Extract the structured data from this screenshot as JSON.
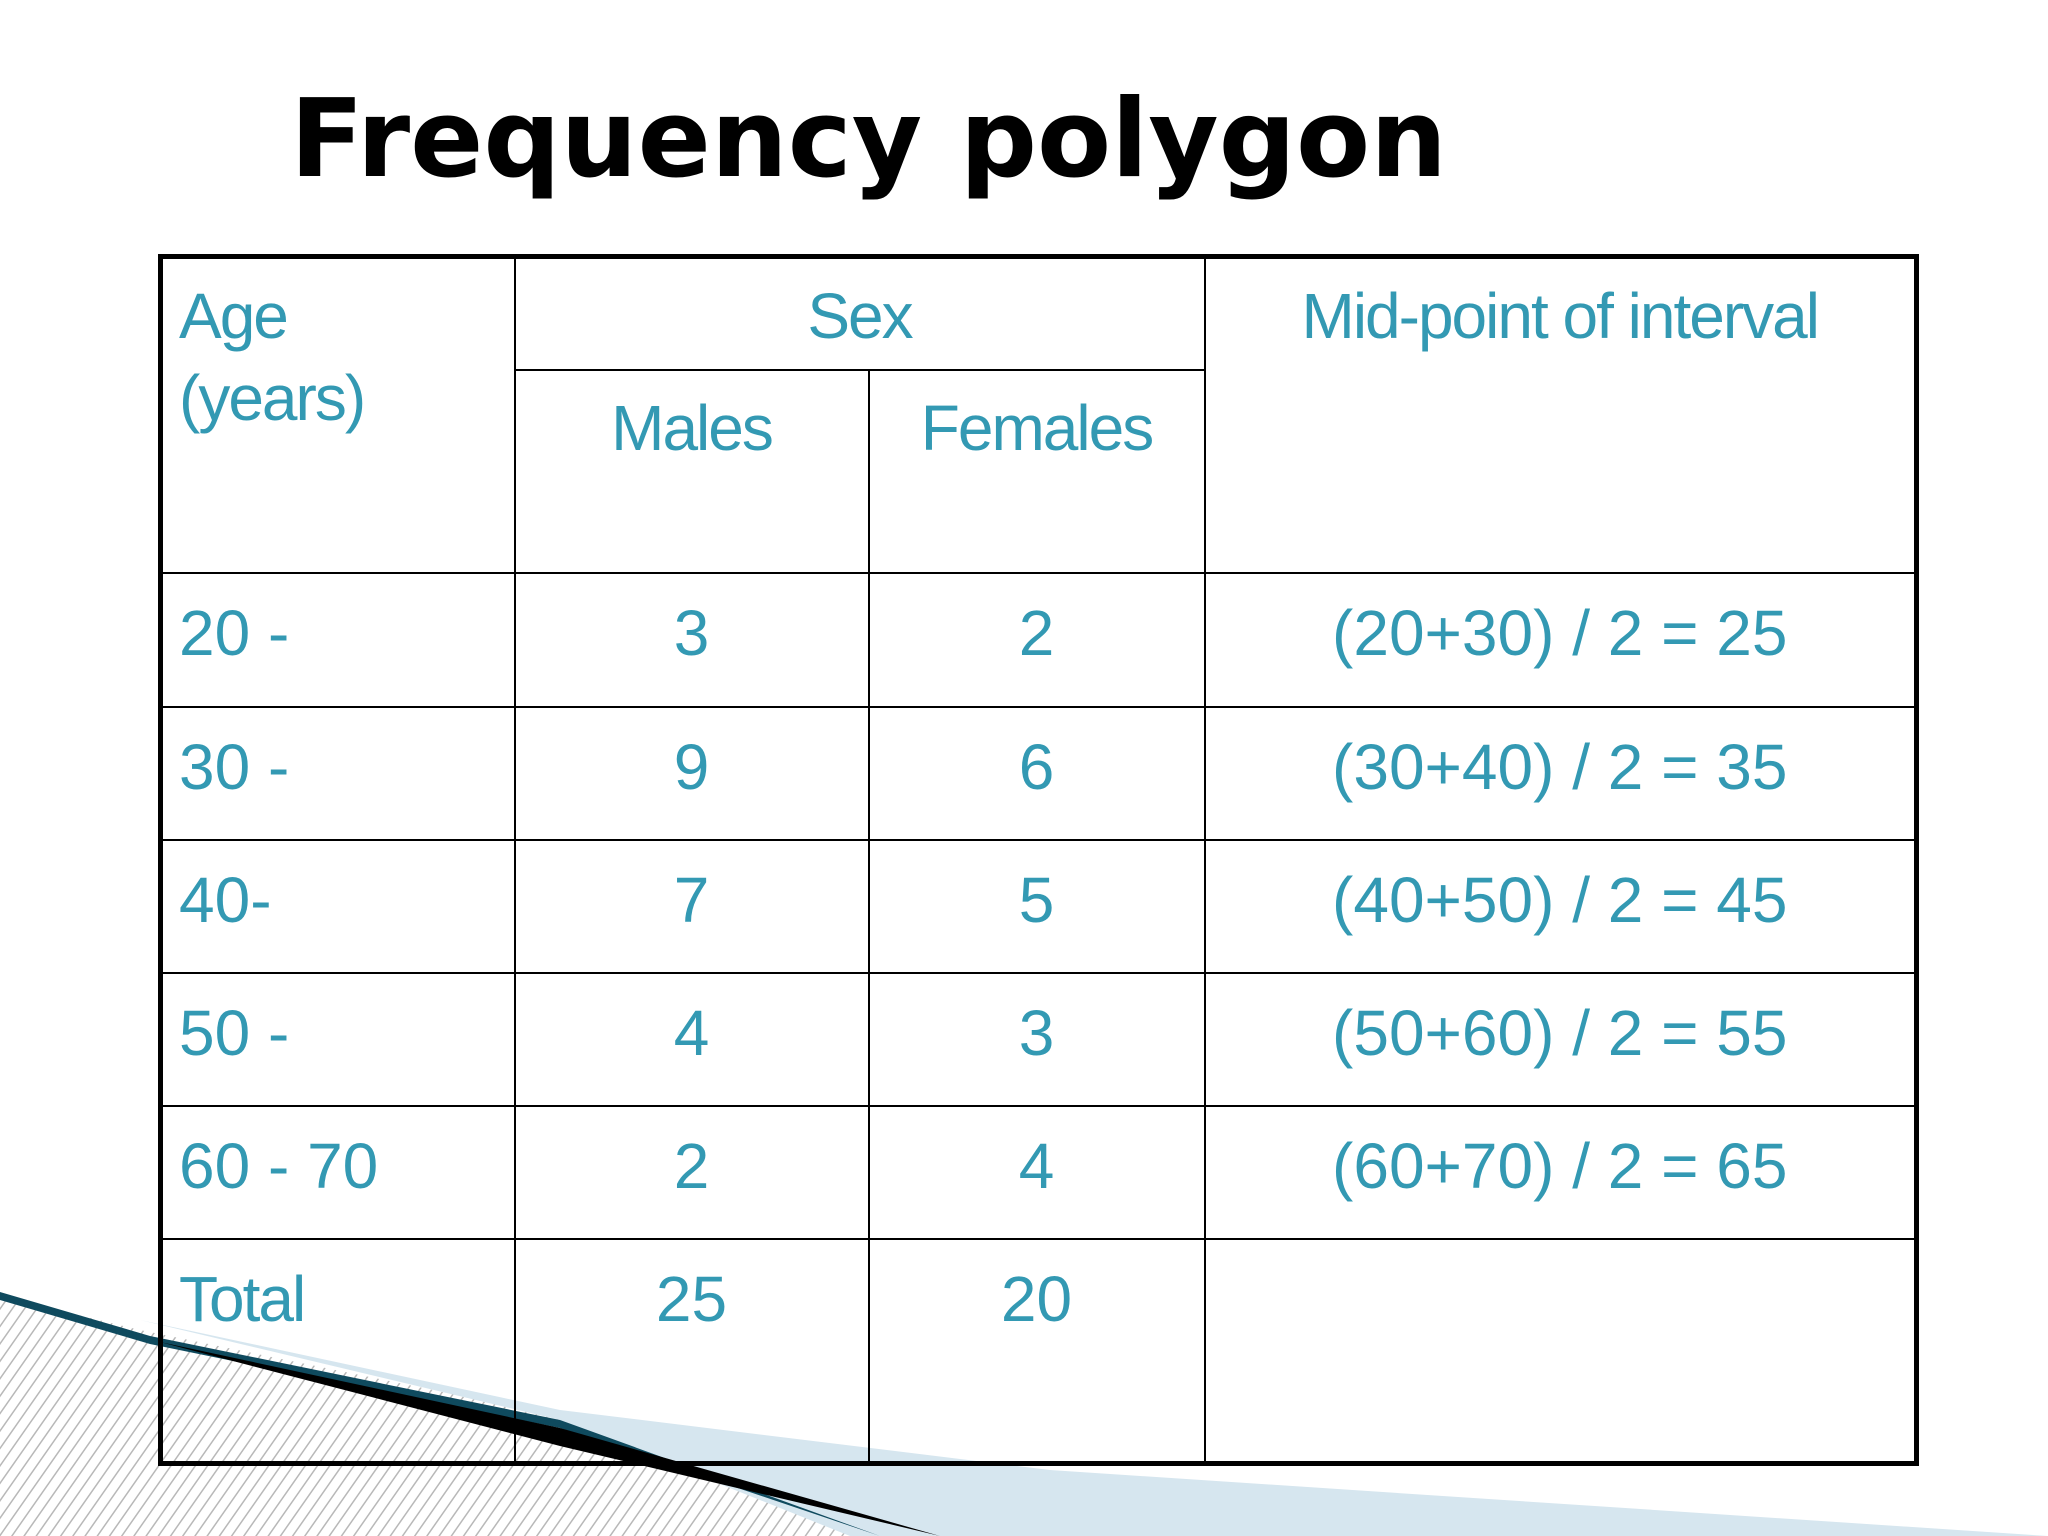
{
  "title": "Frequency polygon",
  "table": {
    "header": {
      "age": "Age",
      "age_unit": "(years)",
      "sex": "Sex",
      "midpoint": "Mid-point of interval",
      "males": "Males",
      "females": "Females"
    },
    "rows": [
      {
        "age": "20 -",
        "males": "3",
        "females": "2",
        "midpoint": "(20+30) / 2 = 25"
      },
      {
        "age": "30 -",
        "males": "9",
        "females": "6",
        "midpoint": "(30+40) / 2 = 35"
      },
      {
        "age": "40-",
        "males": "7",
        "females": "5",
        "midpoint": "(40+50) / 2 = 45"
      },
      {
        "age": "50 -",
        "males": "4",
        "females": "3",
        "midpoint": "(50+60) / 2 = 55"
      },
      {
        "age": "60 - 70",
        "males": "2",
        "females": "4",
        "midpoint": "(60+70) / 2 = 65"
      }
    ],
    "total": {
      "label": "Total",
      "males": "25",
      "females": "20",
      "midpoint": ""
    }
  },
  "colors": {
    "accent": "#3399b3",
    "text": "#000000",
    "decor_light": "#d6e6ef",
    "decor_dark": "#0f4a5e"
  }
}
